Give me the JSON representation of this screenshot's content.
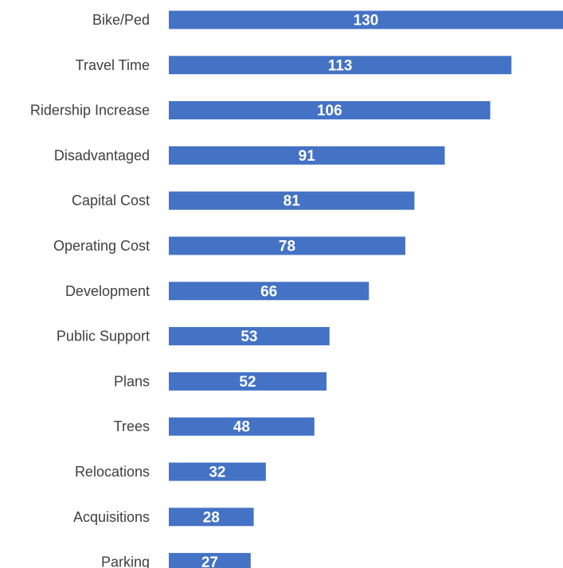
{
  "chart_data": {
    "type": "bar",
    "orientation": "horizontal",
    "categories": [
      "Bike/Ped",
      "Travel Time",
      "Ridership Increase",
      "Disadvantaged",
      "Capital Cost",
      "Operating Cost",
      "Development",
      "Public Support",
      "Plans",
      "Trees",
      "Relocations",
      "Acquisitions",
      "Parking"
    ],
    "values": [
      130,
      113,
      106,
      91,
      81,
      78,
      66,
      53,
      52,
      48,
      32,
      28,
      27
    ],
    "title": "",
    "xlabel": "",
    "ylabel": "",
    "xlim": [
      0,
      130
    ],
    "grid": false,
    "legend": "none",
    "data_labels": true,
    "bar_color": "#4472C4",
    "label_color": "#404040",
    "data_label_color": "#FFFFFF"
  }
}
